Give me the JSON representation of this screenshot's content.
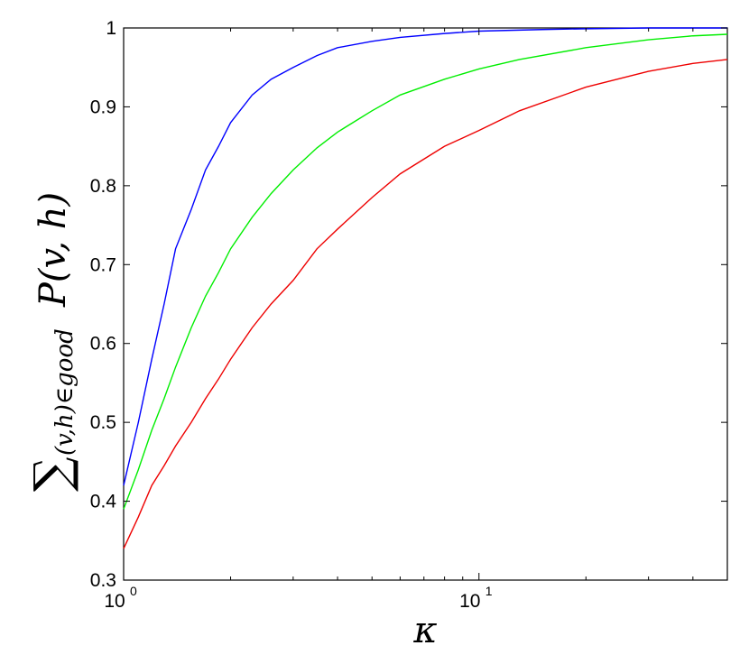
{
  "chart_data": {
    "type": "line",
    "xlabel": "κ",
    "ylabel": {
      "sum_symbol": "∑",
      "subscript": "(v,h)∈good",
      "expression": "P(v, h)"
    },
    "x_scale": "log",
    "xlim": [
      1,
      50
    ],
    "ylim": [
      0.3,
      1.0
    ],
    "grid": false,
    "x_ticks": [
      {
        "value": 1,
        "base": "10",
        "exp": "0"
      },
      {
        "value": 10,
        "base": "10",
        "exp": "1"
      }
    ],
    "y_ticks": [
      {
        "value": 0.3,
        "label": "0.3"
      },
      {
        "value": 0.4,
        "label": "0.4"
      },
      {
        "value": 0.5,
        "label": "0.5"
      },
      {
        "value": 0.6,
        "label": "0.6"
      },
      {
        "value": 0.7,
        "label": "0.7"
      },
      {
        "value": 0.8,
        "label": "0.8"
      },
      {
        "value": 0.9,
        "label": "0.9"
      },
      {
        "value": 1.0,
        "label": "1"
      }
    ],
    "series": [
      {
        "color": "#0000ff",
        "points": [
          [
            1.0,
            0.42
          ],
          [
            1.1,
            0.5
          ],
          [
            1.2,
            0.58
          ],
          [
            1.3,
            0.65
          ],
          [
            1.4,
            0.72
          ],
          [
            1.55,
            0.77
          ],
          [
            1.7,
            0.82
          ],
          [
            1.85,
            0.85
          ],
          [
            2.0,
            0.88
          ],
          [
            2.3,
            0.915
          ],
          [
            2.6,
            0.935
          ],
          [
            3.0,
            0.95
          ],
          [
            3.5,
            0.965
          ],
          [
            4.0,
            0.975
          ],
          [
            5.0,
            0.983
          ],
          [
            6.0,
            0.988
          ],
          [
            8.0,
            0.993
          ],
          [
            10.0,
            0.996
          ],
          [
            15.0,
            0.998
          ],
          [
            20.0,
            0.999
          ],
          [
            30.0,
            1.0
          ],
          [
            50.0,
            1.0
          ]
        ]
      },
      {
        "color": "#00ee00",
        "points": [
          [
            1.0,
            0.39
          ],
          [
            1.1,
            0.44
          ],
          [
            1.2,
            0.49
          ],
          [
            1.3,
            0.53
          ],
          [
            1.4,
            0.57
          ],
          [
            1.55,
            0.62
          ],
          [
            1.7,
            0.66
          ],
          [
            1.85,
            0.69
          ],
          [
            2.0,
            0.72
          ],
          [
            2.3,
            0.76
          ],
          [
            2.6,
            0.79
          ],
          [
            3.0,
            0.82
          ],
          [
            3.5,
            0.848
          ],
          [
            4.0,
            0.868
          ],
          [
            5.0,
            0.895
          ],
          [
            6.0,
            0.915
          ],
          [
            8.0,
            0.935
          ],
          [
            10.0,
            0.948
          ],
          [
            13.0,
            0.96
          ],
          [
            20.0,
            0.975
          ],
          [
            30.0,
            0.985
          ],
          [
            40.0,
            0.99
          ],
          [
            50.0,
            0.992
          ]
        ]
      },
      {
        "color": "#ee0000",
        "points": [
          [
            1.0,
            0.34
          ],
          [
            1.1,
            0.38
          ],
          [
            1.2,
            0.42
          ],
          [
            1.3,
            0.445
          ],
          [
            1.4,
            0.47
          ],
          [
            1.55,
            0.5
          ],
          [
            1.7,
            0.53
          ],
          [
            1.85,
            0.555
          ],
          [
            2.0,
            0.58
          ],
          [
            2.3,
            0.62
          ],
          [
            2.6,
            0.65
          ],
          [
            3.0,
            0.68
          ],
          [
            3.5,
            0.72
          ],
          [
            4.0,
            0.745
          ],
          [
            5.0,
            0.785
          ],
          [
            6.0,
            0.815
          ],
          [
            8.0,
            0.85
          ],
          [
            10.0,
            0.87
          ],
          [
            13.0,
            0.895
          ],
          [
            20.0,
            0.925
          ],
          [
            30.0,
            0.945
          ],
          [
            40.0,
            0.955
          ],
          [
            50.0,
            0.96
          ]
        ]
      }
    ]
  }
}
